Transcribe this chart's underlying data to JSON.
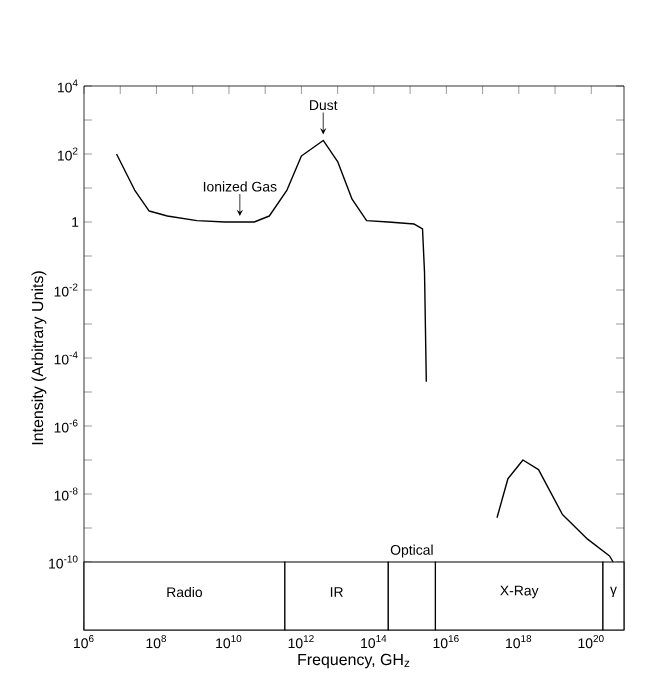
{
  "chart_data": {
    "type": "line",
    "xlabel": "Frequency, GH$_{z}$",
    "ylabel": "Intensity (Arbitrary Units)",
    "log": "xy",
    "xlim": [
      1000000.0,
      8e+20
    ],
    "ylim": [
      1e-12,
      10000.0
    ],
    "xticks": [
      {
        "value": 1000000.0,
        "label": "10$^{6}$"
      },
      {
        "value": 10000000.0,
        "label": null
      },
      {
        "value": 100000000.0,
        "label": "10$^{8}$"
      },
      {
        "value": 1000000000.0,
        "label": null
      },
      {
        "value": 10000000000.0,
        "label": "10$^{10}$"
      },
      {
        "value": 100000000000.0,
        "label": null
      },
      {
        "value": 1000000000000.0,
        "label": "10$^{12}$"
      },
      {
        "value": 10000000000000.0,
        "label": null
      },
      {
        "value": 100000000000000.0,
        "label": "10$^{14}$"
      },
      {
        "value": 1000000000000000.0,
        "label": null
      },
      {
        "value": 1e+16,
        "label": "10$^{16}$"
      },
      {
        "value": 1e+17,
        "label": null
      },
      {
        "value": 1e+18,
        "label": "10$^{18}$"
      },
      {
        "value": 1e+19,
        "label": null
      },
      {
        "value": 1e+20,
        "label": "10$^{20}$"
      }
    ],
    "yticks": [
      {
        "value": 1e-10,
        "label": "10$^{-10}$"
      },
      {
        "value": 1e-09,
        "label": null
      },
      {
        "value": 1e-08,
        "label": "10$^{-8}$"
      },
      {
        "value": 1e-07,
        "label": null
      },
      {
        "value": 1e-06,
        "label": "10$^{-6}$"
      },
      {
        "value": 1e-05,
        "label": null
      },
      {
        "value": 0.0001,
        "label": "10$^{-4}$"
      },
      {
        "value": 0.001,
        "label": null
      },
      {
        "value": 0.01,
        "label": "10$^{-2}$"
      },
      {
        "value": 0.1,
        "label": null
      },
      {
        "value": 1,
        "label": "1"
      },
      {
        "value": 10,
        "label": null
      },
      {
        "value": 100,
        "label": "10$^{2}$"
      },
      {
        "value": 1000,
        "label": null
      },
      {
        "value": 10000.0,
        "label": "10$^{4}$"
      }
    ],
    "series": [
      {
        "color": "#000000",
        "x": [
          7900000.0,
          25000000.0,
          63000000.0,
          200000000.0,
          1300000000.0,
          7900000000.0,
          50000000000.0,
          130000000000.0,
          400000000000.0,
          1000000000000.0,
          4000000000000.0,
          10000000000000.0,
          25000000000000.0,
          63000000000000.0,
          250000000000000.0,
          1300000000000000.0,
          2200000000000000.0,
          2500000000000000.0,
          2800000000000000.0
        ],
        "values": [
          100,
          8.7,
          2.1,
          1.5,
          1.1,
          1,
          1,
          1.5,
          8.7,
          87,
          250,
          60,
          4.7,
          1.1,
          1,
          0.87,
          0.63,
          0.032,
          2e-05
        ]
      },
      {
        "color": "#000000",
        "x": [
          2.5e+17,
          5e+17,
          1.3e+18,
          3.5e+18,
          1.6e+19,
          7.9e+19,
          3.2e+20,
          4e+20
        ],
        "values": [
          2e-09,
          2.8e-08,
          1e-07,
          5.2e-08,
          2.5e-09,
          4.7e-10,
          1.5e-10,
          1e-10
        ]
      }
    ],
    "bands": [
      {
        "axis": "x",
        "from": 1000000.0,
        "to": 350000000000.0,
        "label": "Radio"
      },
      {
        "axis": "x",
        "from": 350000000000.0,
        "to": 250000000000000.0,
        "label": "IR"
      },
      {
        "axis": "x",
        "from": 250000000000000.0,
        "to": 5000000000000000.0,
        "label": "Optical"
      },
      {
        "axis": "x",
        "from": 5000000000000000.0,
        "to": 2.1e+20,
        "label": "X-Ray"
      },
      {
        "axis": "x",
        "from": 2.1e+20,
        "to": 8e+20,
        "label": "γ"
      }
    ],
    "annotations": [
      {
        "text": "Dust",
        "x": 4000000000000.0,
        "y": 250
      },
      {
        "text": "Ionized Gas",
        "x": 20000000000.0,
        "y": 1
      }
    ],
    "grid": false,
    "marker": "none",
    "line_style": "solid"
  }
}
